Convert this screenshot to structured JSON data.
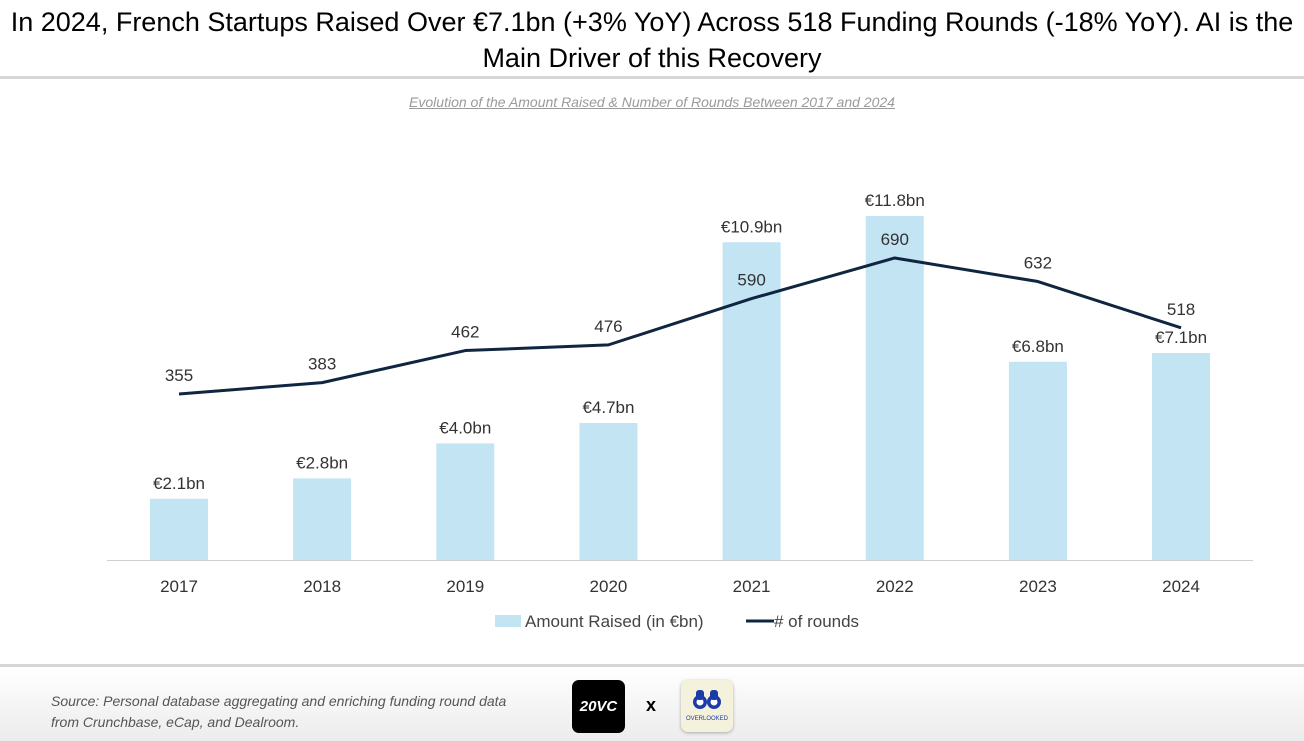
{
  "title": "In 2024, French Startups Raised Over €7.1bn (+3% YoY) Across 518 Funding Rounds (-18% YoY). AI is the Main Driver of this Recovery",
  "chart_data": {
    "type": "bar+line",
    "subtitle": "Evolution of the Amount Raised & Number of Rounds Between 2017 and 2024",
    "categories": [
      "2017",
      "2018",
      "2019",
      "2020",
      "2021",
      "2022",
      "2023",
      "2024"
    ],
    "series": [
      {
        "name": "Amount Raised (in €bn)",
        "type": "bar",
        "color": "#c3e4f3",
        "values": [
          2.1,
          2.8,
          4.0,
          4.7,
          10.9,
          11.8,
          6.8,
          7.1
        ],
        "labels": [
          "€2.1bn",
          "€2.8bn",
          "€4.0bn",
          "€4.7bn",
          "€10.9bn",
          "€11.8bn",
          "€6.8bn",
          "€7.1bn"
        ]
      },
      {
        "name": "# of rounds",
        "type": "line",
        "color": "#0f2540",
        "values": [
          355,
          383,
          462,
          476,
          590,
          690,
          632,
          518
        ],
        "labels": [
          "355",
          "383",
          "462",
          "476",
          "590",
          "690",
          "632",
          "518"
        ]
      }
    ],
    "legend": "bottom",
    "grid": false
  },
  "footer": {
    "source": "Source: Personal database aggregating and enriching funding round data from Crunchbase, eCap, and Dealroom.",
    "logo1": "20VC",
    "separator": "x",
    "logo2": "OVERLOOKED"
  }
}
